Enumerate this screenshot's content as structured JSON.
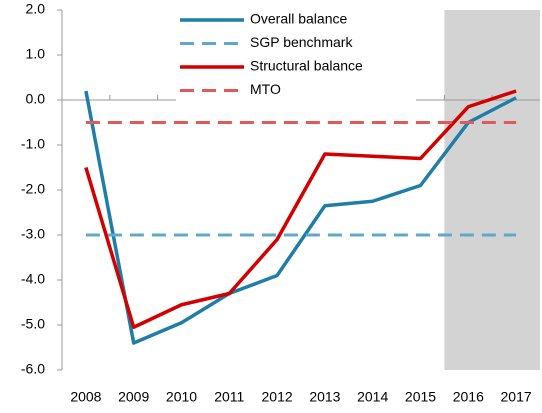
{
  "chart_data": {
    "type": "line",
    "categories": [
      "2008",
      "2009",
      "2010",
      "2011",
      "2012",
      "2013",
      "2014",
      "2015",
      "2016",
      "2017"
    ],
    "series": [
      {
        "name": "Overall balance",
        "color": "#1f7ea8",
        "dash": false,
        "values": [
          0.2,
          -5.4,
          -4.95,
          -4.3,
          -3.9,
          -2.35,
          -2.25,
          -1.9,
          -0.5,
          0.05
        ]
      },
      {
        "name": "SGP benchmark",
        "color": "#5fa8c9",
        "dash": true,
        "values": [
          -3,
          -3,
          -3,
          -3,
          -3,
          -3,
          -3,
          -3,
          -3,
          -3
        ]
      },
      {
        "name": "Structural balance",
        "color": "#d40000",
        "dash": false,
        "values": [
          -1.5,
          -5.05,
          -4.55,
          -4.3,
          -3.1,
          -1.2,
          -1.25,
          -1.3,
          -0.15,
          0.2
        ]
      },
      {
        "name": "MTO",
        "color": "#e05a5a",
        "dash": true,
        "values": [
          -0.5,
          -0.5,
          -0.5,
          -0.5,
          -0.5,
          -0.5,
          -0.5,
          -0.5,
          -0.5,
          -0.5
        ]
      }
    ],
    "ylim": [
      -6,
      2
    ],
    "yticks": [
      {
        "value": 2,
        "label": "2.0"
      },
      {
        "value": 1,
        "label": "1.0"
      },
      {
        "value": 0,
        "label": "0.0"
      },
      {
        "value": -1,
        "label": "-1.0"
      },
      {
        "value": -2,
        "label": "-2.0"
      },
      {
        "value": -3,
        "label": "-3.0"
      },
      {
        "value": -4,
        "label": "-4.0"
      },
      {
        "value": -5,
        "label": "-5.0"
      },
      {
        "value": -6,
        "label": "-6.0"
      }
    ],
    "shaded_from": "2016",
    "legend": "top"
  }
}
